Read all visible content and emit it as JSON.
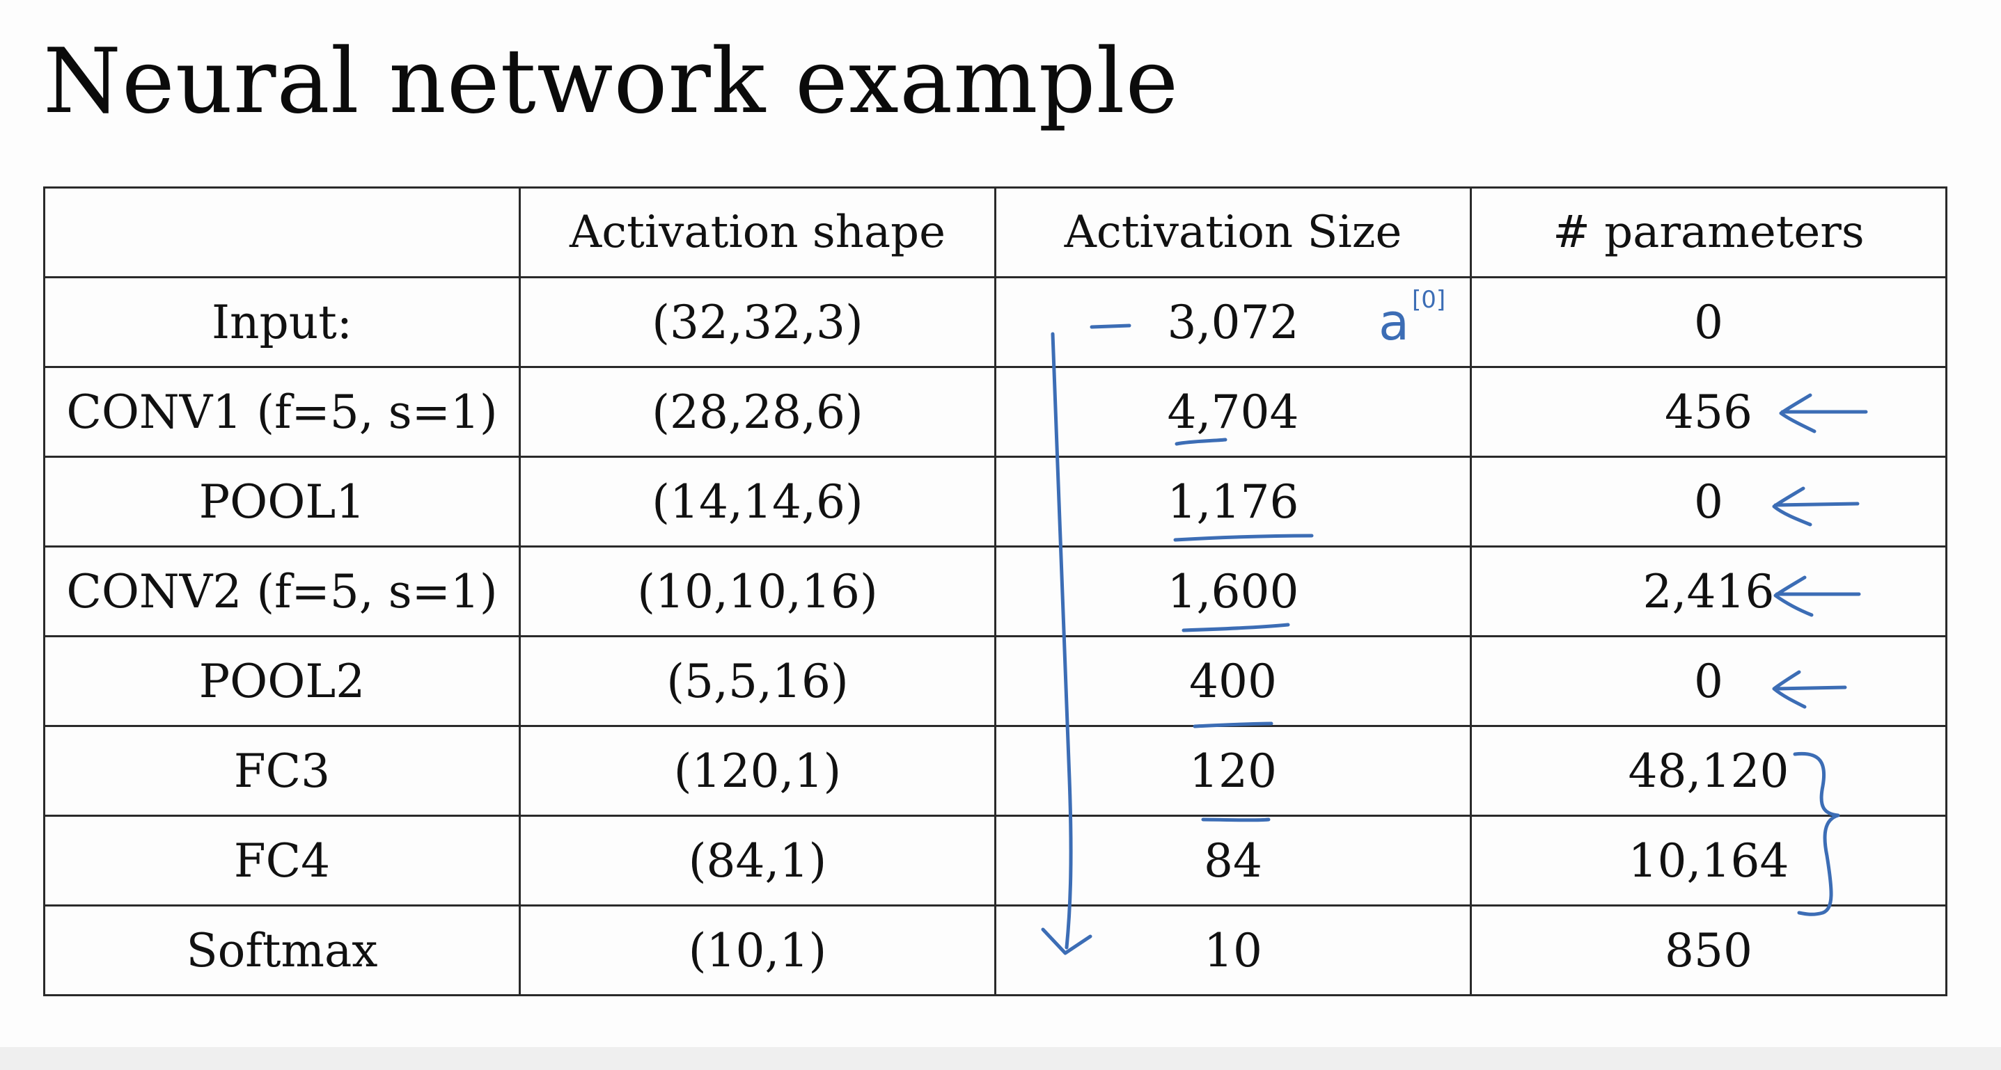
{
  "title": "Neural network example",
  "table": {
    "headers": [
      "",
      "Activation shape",
      "Activation Size",
      "# parameters"
    ],
    "rows": [
      {
        "layer": "Input:",
        "shape": "(32,32,3)",
        "size": "3,072",
        "params": "0"
      },
      {
        "layer": "CONV1 (f=5, s=1)",
        "shape": "(28,28,6)",
        "size": "4,704",
        "params": "456"
      },
      {
        "layer": "POOL1",
        "shape": "(14,14,6)",
        "size": "1,176",
        "params": "0"
      },
      {
        "layer": "CONV2  (f=5, s=1)",
        "shape": "(10,10,16)",
        "size": "1,600",
        "params": "2,416"
      },
      {
        "layer": "POOL2",
        "shape": "(5,5,16)",
        "size": "400",
        "params": "0"
      },
      {
        "layer": "FC3",
        "shape": "(120,1)",
        "size": "120",
        "params": "48,120"
      },
      {
        "layer": "FC4",
        "shape": "(84,1)",
        "size": "84",
        "params": "10,164"
      },
      {
        "layer": "Softmax",
        "shape": "(10,1)",
        "size": "10",
        "params": "850"
      }
    ]
  },
  "annotations": {
    "input_symbol": "a",
    "input_superscript": "[0]",
    "ink_color": "#3c6db5"
  }
}
